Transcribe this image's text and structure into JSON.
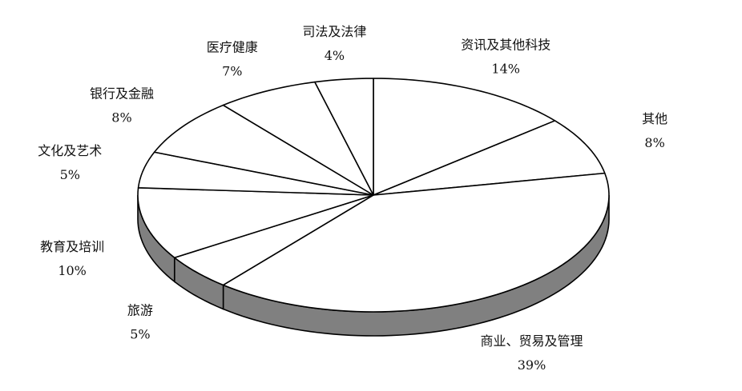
{
  "chart_data": {
    "type": "pie",
    "style": "3d",
    "categories": [
      "资讯及其他科技",
      "其他",
      "商业、贸易及管理",
      "旅游",
      "教育及培训",
      "文化及艺术",
      "银行及金融",
      "医疗健康",
      "司法及法律"
    ],
    "values": [
      14,
      8,
      39,
      5,
      10,
      5,
      8,
      7,
      4
    ],
    "value_labels": [
      "14%",
      "8%",
      "39%",
      "5%",
      "10%",
      "5%",
      "8%",
      "7%",
      "4%"
    ],
    "title": "",
    "colors": {
      "top": "#ffffff",
      "side": "#808080",
      "stroke": "#000000"
    }
  }
}
